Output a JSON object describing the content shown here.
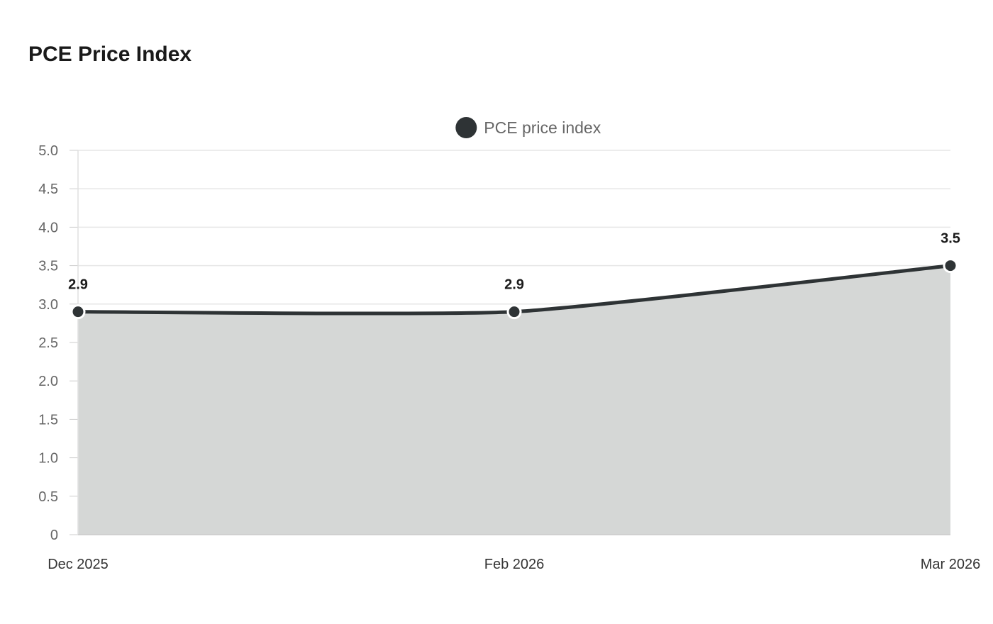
{
  "title": "PCE Price Index",
  "chart_data": {
    "type": "area",
    "title": "PCE Price Index",
    "categories": [
      "Dec 2025",
      "Feb 2026",
      "Mar 2026"
    ],
    "series": [
      {
        "name": "PCE price index",
        "values": [
          2.9,
          2.9,
          3.5
        ],
        "color": "#2e3335"
      }
    ],
    "data_labels": [
      "2.9",
      "2.9",
      "3.5"
    ],
    "y_ticks": [
      "0",
      "0.5",
      "1.0",
      "1.5",
      "2.0",
      "2.5",
      "3.0",
      "3.5",
      "4.0",
      "4.5",
      "5.0"
    ],
    "ylim": [
      0,
      5
    ],
    "grid": true,
    "legend": "top-center",
    "fill_color": "#d5d7d6"
  }
}
